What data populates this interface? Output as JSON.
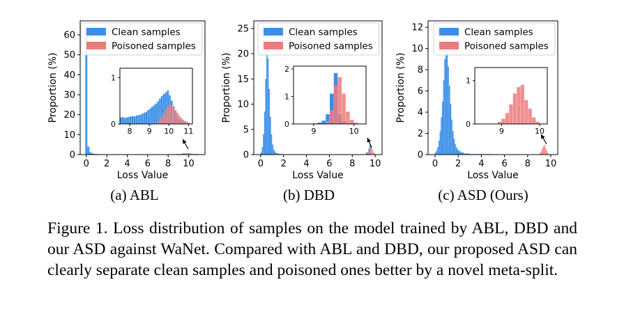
{
  "colors": {
    "clean": "#3b8fe8",
    "poisoned": "#ee7a7c"
  },
  "caption": "Figure 1.  Loss distribution of samples on the model trained by ABL, DBD and our ASD against WaNet. Compared with ABL and DBD, our proposed ASD can clearly separate clean samples and poisoned ones better by a novel meta-split.",
  "chart_data": [
    {
      "type": "histogram",
      "subcaption": "(a) ABL",
      "xlabel": "Loss Value",
      "ylabel": "Proportion (%)",
      "xlim": [
        -0.6,
        11.6
      ],
      "ylim": [
        0,
        67
      ],
      "xticks": [
        0,
        2,
        4,
        6,
        8,
        10
      ],
      "yticks": [
        0,
        10,
        20,
        30,
        40,
        50,
        60
      ],
      "legend": {
        "placement": "top-right",
        "entries": [
          "Clean samples",
          "Poisoned samples"
        ]
      },
      "series": [
        {
          "name": "Clean samples",
          "color": "clean",
          "bins": [
            [
              -0.1,
              0.1,
              64
            ],
            [
              0.1,
              0.3,
              4
            ],
            [
              0.3,
              0.5,
              1.2
            ],
            [
              0.5,
              0.7,
              0.6
            ],
            [
              0.7,
              1.2,
              0.3
            ],
            [
              1.2,
              8.8,
              0.15
            ],
            [
              8.8,
              9.4,
              0.3
            ],
            [
              9.4,
              10.2,
              0.6
            ],
            [
              10.2,
              11,
              0.3
            ]
          ]
        },
        {
          "name": "Poisoned samples",
          "color": "poisoned",
          "bins": [
            [
              9.6,
              10.2,
              0.3
            ],
            [
              10.2,
              10.8,
              0.2
            ]
          ]
        }
      ],
      "inset": {
        "xlim": [
          7.5,
          11.2
        ],
        "ylim": [
          0,
          1.2
        ],
        "xticks": [
          8,
          9,
          10,
          11
        ],
        "yticks": [
          0,
          1
        ],
        "clean": [
          [
            7.5,
            0.14
          ],
          [
            7.6,
            0.15
          ],
          [
            7.7,
            0.13
          ],
          [
            7.8,
            0.14
          ],
          [
            7.9,
            0.15
          ],
          [
            8.0,
            0.16
          ],
          [
            8.1,
            0.17
          ],
          [
            8.2,
            0.16
          ],
          [
            8.3,
            0.18
          ],
          [
            8.4,
            0.19
          ],
          [
            8.5,
            0.2
          ],
          [
            8.6,
            0.22
          ],
          [
            8.7,
            0.24
          ],
          [
            8.8,
            0.26
          ],
          [
            8.9,
            0.3
          ],
          [
            9.0,
            0.33
          ],
          [
            9.1,
            0.37
          ],
          [
            9.2,
            0.4
          ],
          [
            9.3,
            0.44
          ],
          [
            9.4,
            0.49
          ],
          [
            9.5,
            0.55
          ],
          [
            9.6,
            0.6
          ],
          [
            9.7,
            0.65
          ],
          [
            9.8,
            0.68
          ],
          [
            9.9,
            0.72
          ],
          [
            10.0,
            0.62
          ],
          [
            10.1,
            0.5
          ],
          [
            10.2,
            0.38
          ],
          [
            10.3,
            0.27
          ],
          [
            10.4,
            0.18
          ],
          [
            10.5,
            0.12
          ],
          [
            10.6,
            0.08
          ],
          [
            10.7,
            0.05
          ],
          [
            10.8,
            0.04
          ],
          [
            10.9,
            0.03
          ],
          [
            11.0,
            0.02
          ]
        ],
        "poisoned": [
          [
            9.4,
            0.05
          ],
          [
            9.5,
            0.1
          ],
          [
            9.6,
            0.16
          ],
          [
            9.7,
            0.24
          ],
          [
            9.8,
            0.32
          ],
          [
            9.9,
            0.38
          ],
          [
            10.0,
            0.42
          ],
          [
            10.1,
            0.4
          ],
          [
            10.2,
            0.36
          ],
          [
            10.3,
            0.3
          ],
          [
            10.4,
            0.24
          ],
          [
            10.5,
            0.18
          ],
          [
            10.6,
            0.13
          ],
          [
            10.7,
            0.09
          ],
          [
            10.8,
            0.06
          ],
          [
            10.9,
            0.04
          ],
          [
            11.0,
            0.02
          ]
        ]
      }
    },
    {
      "type": "histogram",
      "subcaption": "(b) DBD",
      "xlabel": "Loss Value",
      "ylabel": "Proportion (%)",
      "xlim": [
        -0.6,
        10.6
      ],
      "ylim": [
        0,
        26.5
      ],
      "xticks": [
        0,
        2,
        4,
        6,
        8,
        10
      ],
      "yticks": [
        0,
        5,
        10,
        15,
        20,
        25
      ],
      "legend": {
        "placement": "top-right",
        "entries": [
          "Clean samples",
          "Poisoned samples"
        ]
      },
      "series": [
        {
          "name": "Clean samples",
          "color": "clean",
          "bins": [
            [
              0.0,
              0.1,
              0.4
            ],
            [
              0.1,
              0.2,
              1.5
            ],
            [
              0.2,
              0.3,
              4
            ],
            [
              0.3,
              0.4,
              8.5
            ],
            [
              0.4,
              0.5,
              15
            ],
            [
              0.5,
              0.6,
              20
            ],
            [
              0.6,
              0.7,
              19
            ],
            [
              0.7,
              0.8,
              13
            ],
            [
              0.8,
              0.9,
              7.5
            ],
            [
              0.9,
              1.0,
              4
            ],
            [
              1.0,
              1.1,
              2
            ],
            [
              1.1,
              1.2,
              1
            ],
            [
              1.2,
              1.3,
              0.6
            ],
            [
              1.3,
              1.5,
              0.3
            ],
            [
              1.5,
              1.8,
              0.15
            ],
            [
              9.2,
              9.4,
              0.4
            ],
            [
              9.4,
              9.5,
              1.2
            ],
            [
              9.5,
              9.6,
              1.9
            ]
          ]
        },
        {
          "name": "Poisoned samples",
          "color": "poisoned",
          "bins": [
            [
              9.4,
              9.5,
              0.5
            ],
            [
              9.5,
              9.6,
              1.2
            ],
            [
              9.6,
              9.7,
              1.6
            ],
            [
              9.7,
              9.8,
              1.1
            ],
            [
              9.8,
              9.9,
              0.5
            ],
            [
              9.9,
              10.0,
              0.2
            ]
          ]
        }
      ],
      "inset": {
        "xlim": [
          8.5,
          10.3
        ],
        "ylim": [
          0,
          2.1
        ],
        "xticks": [
          9,
          10
        ],
        "yticks": [
          0,
          1,
          2
        ],
        "clean": [
          [
            9.0,
            0.02
          ],
          [
            9.1,
            0.05
          ],
          [
            9.2,
            0.12
          ],
          [
            9.3,
            0.35
          ],
          [
            9.4,
            1.1
          ],
          [
            9.5,
            1.85
          ],
          [
            9.6,
            0.35
          ],
          [
            9.7,
            0.1
          ],
          [
            9.8,
            0.03
          ]
        ],
        "poisoned": [
          [
            9.3,
            0.1
          ],
          [
            9.4,
            0.5
          ],
          [
            9.5,
            1.4
          ],
          [
            9.6,
            1.7
          ],
          [
            9.7,
            1.1
          ],
          [
            9.8,
            0.45
          ],
          [
            9.9,
            0.15
          ],
          [
            10.0,
            0.05
          ]
        ]
      }
    },
    {
      "type": "histogram",
      "subcaption": "(c) ASD (Ours)",
      "xlabel": "Loss Value",
      "ylabel": "Proportion (%)",
      "xlim": [
        -0.6,
        10.6
      ],
      "ylim": [
        0,
        12.6
      ],
      "xticks": [
        0,
        2,
        4,
        6,
        8,
        10
      ],
      "yticks": [
        0,
        2,
        4,
        6,
        8,
        10,
        12
      ],
      "legend": {
        "placement": "top-right",
        "entries": [
          "Clean samples",
          "Poisoned samples"
        ]
      },
      "series": [
        {
          "name": "Clean samples",
          "color": "clean",
          "bins": [
            [
              0.0,
              0.1,
              0.2
            ],
            [
              0.1,
              0.2,
              0.4
            ],
            [
              0.2,
              0.3,
              0.7
            ],
            [
              0.3,
              0.4,
              1.3
            ],
            [
              0.4,
              0.5,
              2.2
            ],
            [
              0.5,
              0.6,
              3.5
            ],
            [
              0.6,
              0.7,
              5
            ],
            [
              0.7,
              0.8,
              7
            ],
            [
              0.8,
              0.9,
              9
            ],
            [
              0.9,
              1.0,
              9.8
            ],
            [
              1.0,
              1.1,
              9.5
            ],
            [
              1.1,
              1.2,
              8.3
            ],
            [
              1.2,
              1.3,
              6.5
            ],
            [
              1.3,
              1.4,
              4.8
            ],
            [
              1.4,
              1.5,
              3.3
            ],
            [
              1.5,
              1.6,
              2.2
            ],
            [
              1.6,
              1.7,
              1.5
            ],
            [
              1.7,
              1.8,
              1
            ],
            [
              1.8,
              1.9,
              0.7
            ],
            [
              1.9,
              2.0,
              0.5
            ],
            [
              2.0,
              2.2,
              0.35
            ],
            [
              2.2,
              2.5,
              0.2
            ],
            [
              2.5,
              3,
              0.1
            ],
            [
              3,
              5,
              0.05
            ]
          ]
        },
        {
          "name": "Poisoned samples",
          "color": "poisoned",
          "bins": [
            [
              9.0,
              9.1,
              0.1
            ],
            [
              9.1,
              9.2,
              0.25
            ],
            [
              9.2,
              9.3,
              0.5
            ],
            [
              9.3,
              9.4,
              0.75
            ],
            [
              9.4,
              9.5,
              0.9
            ],
            [
              9.5,
              9.6,
              0.6
            ],
            [
              9.6,
              9.7,
              0.35
            ],
            [
              9.7,
              9.8,
              0.15
            ]
          ]
        }
      ],
      "inset": {
        "xlim": [
          8.3,
          10.2
        ],
        "ylim": [
          0,
          1.3
        ],
        "xticks": [
          9,
          10
        ],
        "yticks": [
          0,
          1
        ],
        "clean": [],
        "poisoned": [
          [
            8.9,
            0.05
          ],
          [
            9.0,
            0.12
          ],
          [
            9.1,
            0.25
          ],
          [
            9.2,
            0.45
          ],
          [
            9.3,
            0.7
          ],
          [
            9.4,
            0.85
          ],
          [
            9.5,
            0.9
          ],
          [
            9.6,
            0.55
          ],
          [
            9.7,
            0.35
          ],
          [
            9.8,
            0.15
          ],
          [
            9.9,
            0.05
          ]
        ]
      }
    }
  ]
}
